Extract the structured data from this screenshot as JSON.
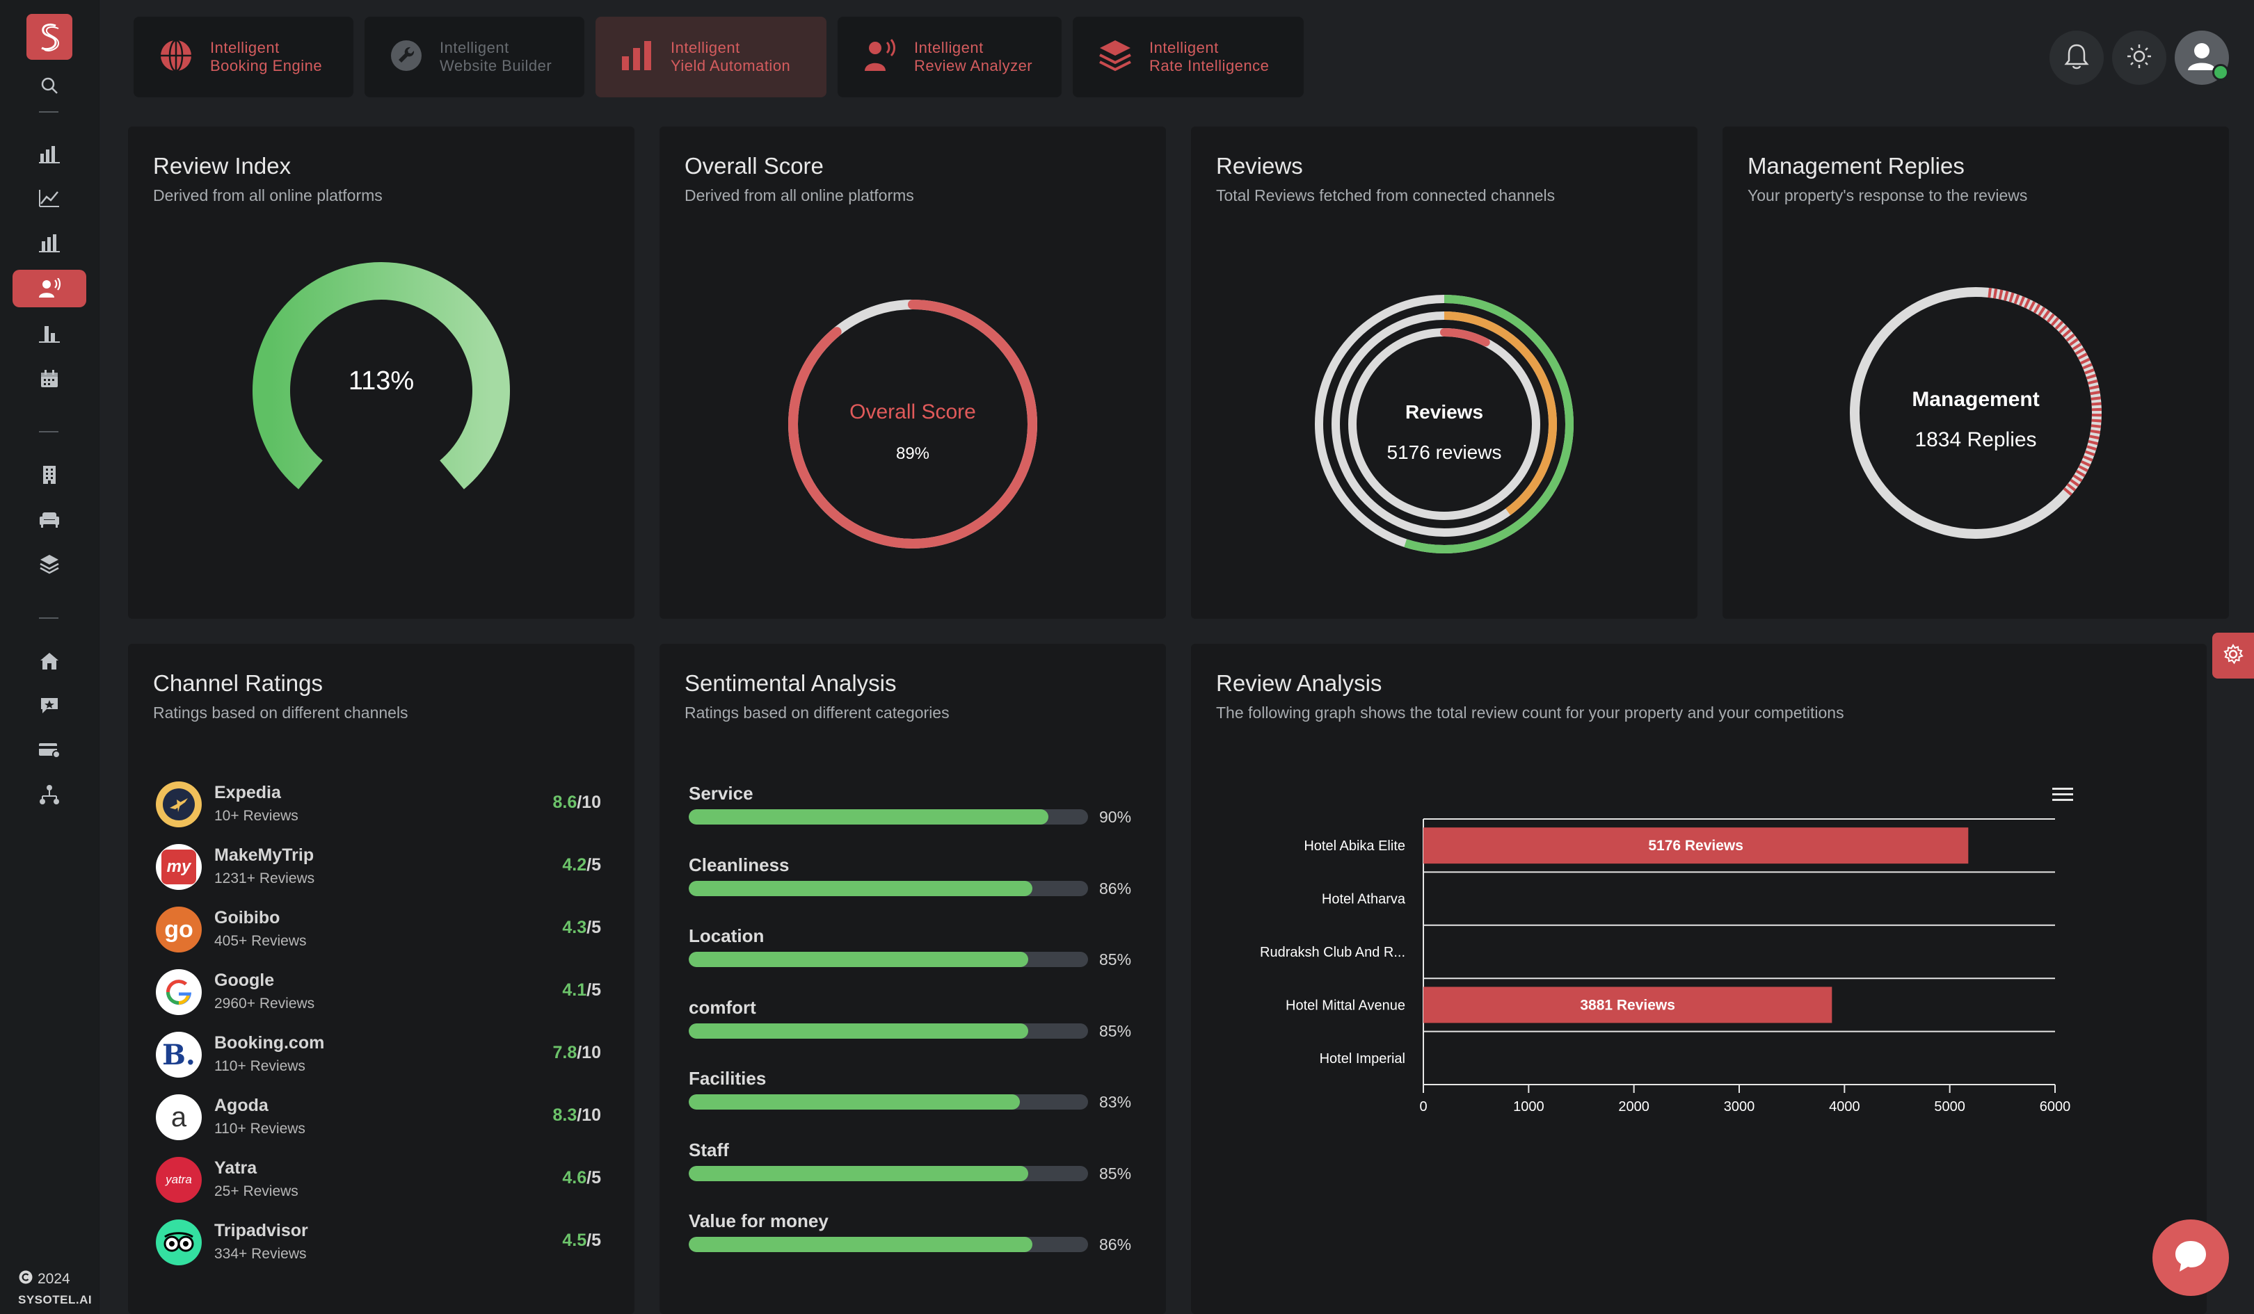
{
  "sidebar": {
    "copyright_year": "2024",
    "brand": "SYSOTEL.AI",
    "icons": [
      "search-icon",
      "bar-chart-icon",
      "line-chart-icon",
      "bar-chart-small-icon",
      "review-analyzer-icon",
      "column-chart-icon",
      "calendar-icon",
      "building-icon",
      "sofa-icon",
      "layers-icon",
      "house-icon",
      "message-star-icon",
      "credit-card-icon",
      "network-icon"
    ],
    "active_item": "review-analyzer-icon"
  },
  "product_tabs": [
    {
      "line1": "Intelligent",
      "line2": "Booking Engine",
      "state": "normal"
    },
    {
      "line1": "Intelligent",
      "line2": "Website Builder",
      "state": "disabled"
    },
    {
      "line1": "Intelligent",
      "line2": "Yield Automation",
      "state": "active"
    },
    {
      "line1": "Intelligent",
      "line2": "Review Analyzer",
      "state": "normal"
    },
    {
      "line1": "Intelligent",
      "line2": "Rate Intelligence",
      "state": "normal"
    }
  ],
  "colors": {
    "accent_red": "#c94b4e",
    "green": "#6cc36a",
    "orange": "#e8a04a",
    "bg": "#1f2124",
    "card": "#18191b"
  },
  "review_index": {
    "title": "Review Index",
    "subtitle": "Derived from all online platforms",
    "value_text": "113%",
    "value": 113
  },
  "overall_score": {
    "title": "Overall Score",
    "subtitle": "Derived from all online platforms",
    "label": "Overall Score",
    "value_text": "89%",
    "value": 89
  },
  "reviews": {
    "title": "Reviews",
    "subtitle": "Total Reviews fetched from connected channels",
    "center_title": "Reviews",
    "center_value": "5176 reviews"
  },
  "management_replies": {
    "title": "Management Replies",
    "subtitle": "Your property's response to the reviews",
    "center_title": "Management",
    "center_value": "1834 Replies"
  },
  "channel_ratings": {
    "title": "Channel Ratings",
    "subtitle": "Ratings based on different channels",
    "channels": [
      {
        "name": "Expedia",
        "count": "10+ Reviews",
        "score": "8.6",
        "scale": "/10",
        "logo": "expedia-logo"
      },
      {
        "name": "MakeMyTrip",
        "count": "1231+ Reviews",
        "score": "4.2",
        "scale": "/5",
        "logo": "makemytrip-logo"
      },
      {
        "name": "Goibibo",
        "count": "405+ Reviews",
        "score": "4.3",
        "scale": "/5",
        "logo": "goibibo-logo"
      },
      {
        "name": "Google",
        "count": "2960+ Reviews",
        "score": "4.1",
        "scale": "/5",
        "logo": "google-logo"
      },
      {
        "name": "Booking.com",
        "count": "110+ Reviews",
        "score": "7.8",
        "scale": "/10",
        "logo": "booking-logo"
      },
      {
        "name": "Agoda",
        "count": "110+ Reviews",
        "score": "8.3",
        "scale": "/10",
        "logo": "agoda-logo"
      },
      {
        "name": "Yatra",
        "count": "25+ Reviews",
        "score": "4.6",
        "scale": "/5",
        "logo": "yatra-logo"
      },
      {
        "name": "Tripadvisor",
        "count": "334+ Reviews",
        "score": "4.5",
        "scale": "/5",
        "logo": "tripadvisor-logo"
      }
    ],
    "logo_texts": {
      "makemytrip": "my",
      "goibibo": "go",
      "booking": "B.",
      "agoda": "a",
      "yatra": "yatra"
    }
  },
  "sentiment": {
    "title": "Sentimental Analysis",
    "subtitle": "Ratings based on different categories",
    "items": [
      {
        "label": "Service",
        "pct_text": "90%",
        "value": 90
      },
      {
        "label": "Cleanliness",
        "pct_text": "86%",
        "value": 86
      },
      {
        "label": "Location",
        "pct_text": "85%",
        "value": 85
      },
      {
        "label": "comfort",
        "pct_text": "85%",
        "value": 85
      },
      {
        "label": "Facilities",
        "pct_text": "83%",
        "value": 83
      },
      {
        "label": "Staff",
        "pct_text": "85%",
        "value": 85
      },
      {
        "label": "Value for money",
        "pct_text": "86%",
        "value": 86
      }
    ]
  },
  "review_analysis": {
    "title": "Review Analysis",
    "subtitle": "The following graph shows the total review count for your property and your competitions"
  },
  "chart_data": {
    "type": "bar",
    "orientation": "horizontal",
    "categories": [
      "Hotel Abika Elite",
      "Hotel Atharva",
      "Rudraksh Club And R...",
      "Hotel Mittal Avenue",
      "Hotel Imperial"
    ],
    "values": [
      5176,
      0,
      0,
      3881,
      0
    ],
    "data_labels": [
      "5176 Reviews",
      "",
      "",
      "3881 Reviews",
      ""
    ],
    "xlim": [
      0,
      6000
    ],
    "xticks": [
      "0",
      "1000",
      "2000",
      "3000",
      "4000",
      "5000",
      "6000"
    ],
    "bar_color": "#c94b4e",
    "grid": true,
    "legend": "none"
  }
}
